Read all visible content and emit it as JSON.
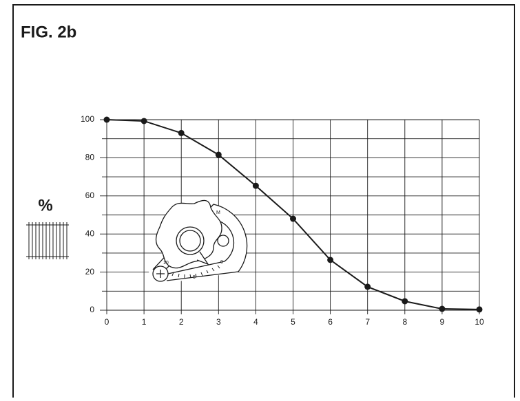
{
  "chart_data": {
    "type": "line",
    "title": "FIG. 2b",
    "ylabel": "%",
    "x": [
      0,
      1,
      2,
      3,
      4,
      5,
      6,
      7,
      8,
      9,
      10
    ],
    "series": [
      {
        "color": "#1a1a1a",
        "values": [
          100,
          99.3,
          93,
          81.6,
          65.3,
          48,
          26.4,
          12.3,
          4.7,
          0.7,
          0.4
        ]
      }
    ],
    "xlim": [
      0,
      10
    ],
    "xticks": [
      0,
      1,
      2,
      3,
      4,
      5,
      6,
      7,
      8,
      9,
      10
    ],
    "ylim": [
      0,
      100
    ],
    "yticks": [
      0,
      20,
      40,
      60,
      80,
      100
    ],
    "yminor": [
      10,
      30,
      50,
      70,
      90
    ],
    "grid": true,
    "dial_labels": [
      "M",
      "10",
      "5",
      "0"
    ]
  }
}
